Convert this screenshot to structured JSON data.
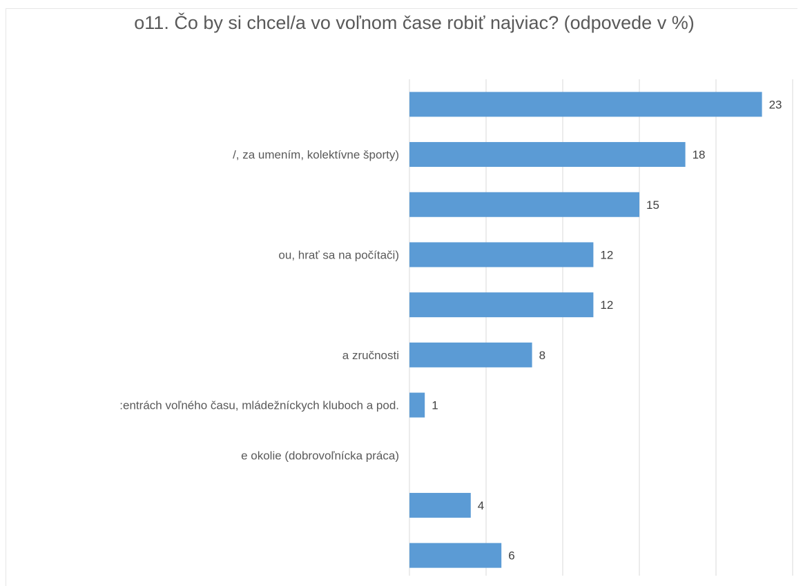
{
  "chart_data": {
    "type": "bar",
    "orientation": "horizontal",
    "title": "o11. Čo by si chcel/a vo voľnom čase robiť najviac? (odpovede v %)",
    "categories": [
      "",
      "/, za umením, kolektívne športy)",
      "",
      "ou, hrať sa na počítači)",
      "",
      "a zručnosti",
      ":entrách voľného času, mládežníckych kluboch a pod.",
      "e okolie (dobrovoľnícka práca)",
      "",
      ""
    ],
    "values": [
      23,
      18,
      15,
      12,
      12,
      8,
      1,
      null,
      4,
      6
    ],
    "xlim": [
      0,
      25
    ],
    "grid": true,
    "legend": "none",
    "bar_color": "#5b9bd5"
  }
}
